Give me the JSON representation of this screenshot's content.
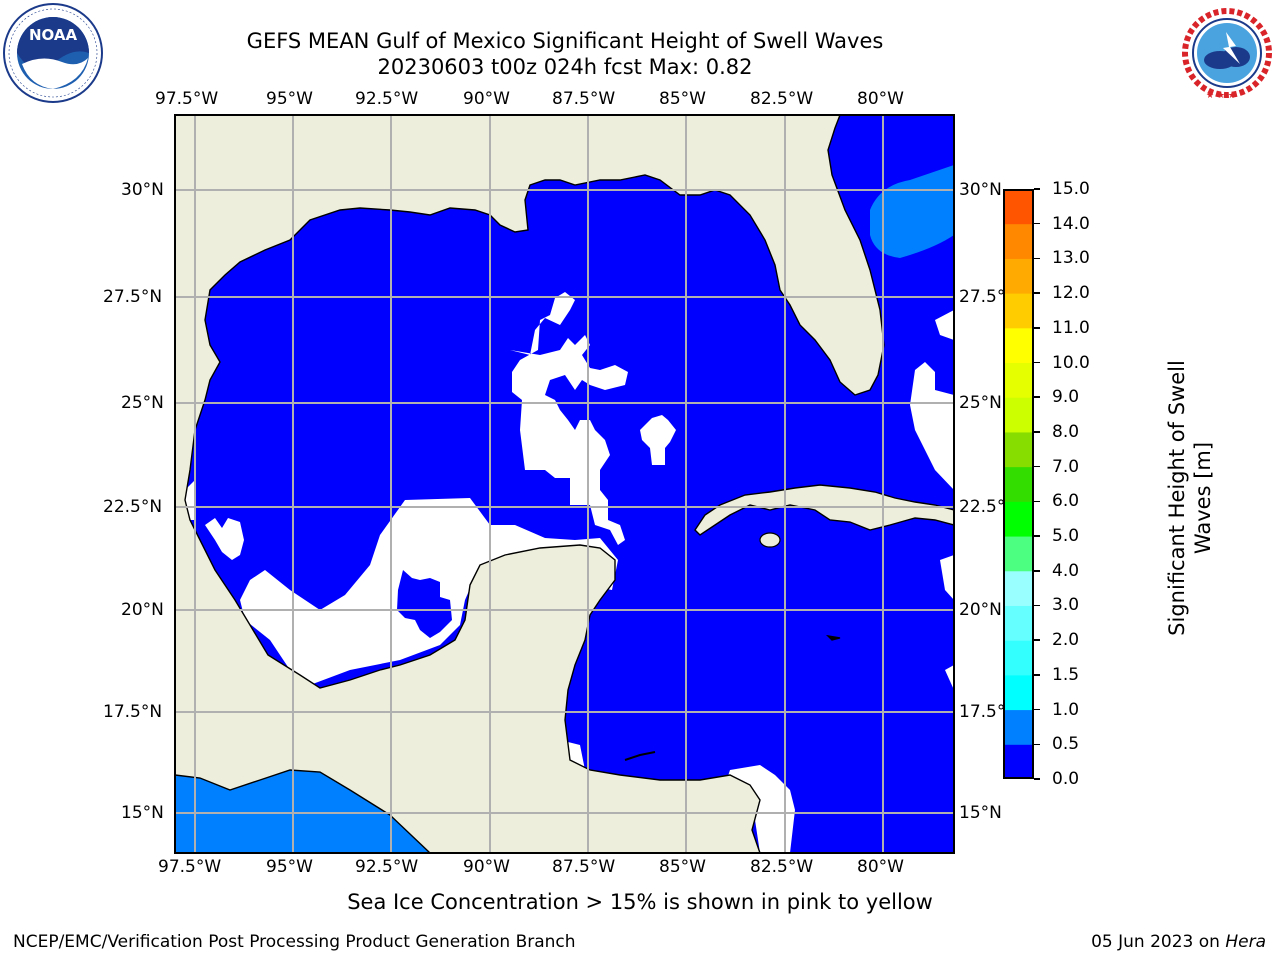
{
  "header": {
    "title_line1": "GEFS MEAN Gulf of Mexico Significant Height of Swell Waves",
    "title_line2": "20230603 t00z 024h fcst   Max: 0.82"
  },
  "logos": {
    "left": "NOAA",
    "left_ring_text": "NATIONAL OCEANIC AND ATMOSPHERIC ADMINISTRATION · U.S. DEPARTMENT OF COMMERCE",
    "right_ring_text": "NATIONAL WEATHER SERVICE"
  },
  "map": {
    "lon_labels": [
      "97.5°W",
      "95°W",
      "92.5°W",
      "90°W",
      "87.5°W",
      "85°W",
      "82.5°W",
      "80°W"
    ],
    "lat_labels": [
      "30°N",
      "27.5°N",
      "25°N",
      "22.5°N",
      "20°N",
      "17.5°N",
      "15°N"
    ],
    "colors": {
      "land": "#eeeedc",
      "sea_low": "#0000ff",
      "sea_mid": "#0080ff",
      "no_data": "#ffffff",
      "grid": "#b0b0b0"
    }
  },
  "colorbar": {
    "label_line1": "Significant Height of Swell",
    "label_line2": "Waves [m]",
    "ticks": [
      "15.0",
      "14.0",
      "13.0",
      "12.0",
      "11.0",
      "10.0",
      "9.0",
      "8.0",
      "7.0",
      "6.0",
      "5.0",
      "4.0",
      "3.0",
      "2.0",
      "1.5",
      "1.0",
      "0.5",
      "0.0"
    ],
    "colors_bottom_to_top": [
      "#0000ff",
      "#0080ff",
      "#00ffff",
      "#33ffff",
      "#66ffff",
      "#99ffff",
      "#4dff80",
      "#00ff00",
      "#33dd00",
      "#88dd00",
      "#ccff00",
      "#e6ff00",
      "#ffff00",
      "#ffcc00",
      "#ffaa00",
      "#ff8800",
      "#ff5500",
      "#ff2200",
      "#ff0000"
    ]
  },
  "bottom_note": "Sea Ice Concentration > 15% is shown in pink to yellow",
  "footer": {
    "left": "NCEP/EMC/Verification Post Processing Product Generation Branch",
    "right_date": "05 Jun 2023 on",
    "right_host": "Hera"
  }
}
